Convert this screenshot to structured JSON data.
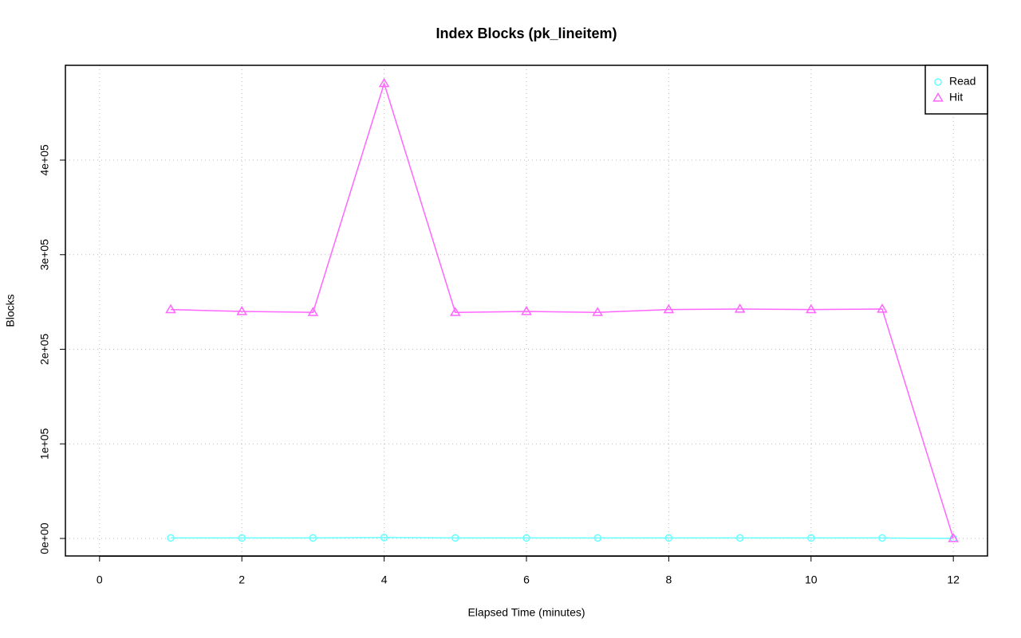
{
  "chart_data": {
    "type": "line",
    "title": "Index Blocks (pk_lineitem)",
    "x_label": "Elapsed Time (minutes)",
    "y_label": "Blocks",
    "x": [
      1,
      2,
      3,
      4,
      5,
      6,
      7,
      8,
      9,
      10,
      11,
      12
    ],
    "series": [
      {
        "name": "Read",
        "color": "#66ffff",
        "marker": "circle",
        "values": [
          500,
          500,
          500,
          1000,
          500,
          500,
          500,
          500,
          500,
          500,
          500,
          0
        ]
      },
      {
        "name": "Hit",
        "color": "#ff66ff",
        "marker": "triangle",
        "values": [
          242000,
          240000,
          239000,
          481000,
          239000,
          240000,
          239000,
          242000,
          242500,
          242000,
          242500,
          0
        ]
      }
    ],
    "xlim": [
      -0.48,
      12.48
    ],
    "xticks": [
      0,
      2,
      4,
      6,
      8,
      10,
      12
    ],
    "ylim": [
      -18500,
      500200
    ],
    "yticks": [
      {
        "value": 0,
        "label": "0e+00"
      },
      {
        "value": 100000,
        "label": "1e+05"
      },
      {
        "value": 200000,
        "label": "2e+05"
      },
      {
        "value": 300000,
        "label": "3e+05"
      },
      {
        "value": 400000,
        "label": "4e+05"
      }
    ],
    "grid": true,
    "legend": "topright"
  }
}
